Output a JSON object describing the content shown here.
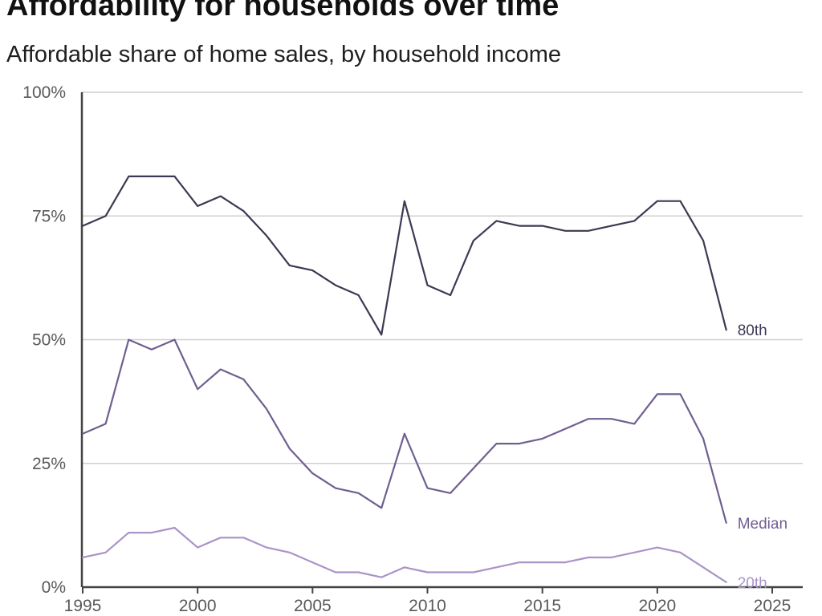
{
  "chart_data": {
    "type": "line",
    "title": "Affordability for households over time",
    "subtitle": "Affordable share of home sales, by household income",
    "xlim": [
      1995,
      2025
    ],
    "ylim": [
      0,
      100
    ],
    "x_ticks": [
      1995,
      2000,
      2005,
      2010,
      2015,
      2020,
      2025
    ],
    "y_ticks": [
      0,
      25,
      50,
      75,
      100
    ],
    "y_tick_labels": [
      "0%",
      "25%",
      "50%",
      "75%",
      "100%"
    ],
    "x_tick_labels": [
      "1995",
      "2000",
      "2005",
      "2010",
      "2015",
      "2020",
      "2025"
    ],
    "grid": "horizontal",
    "x": [
      1995,
      1996,
      1997,
      1998,
      1999,
      2000,
      2001,
      2002,
      2003,
      2004,
      2005,
      2006,
      2007,
      2008,
      2009,
      2010,
      2011,
      2012,
      2013,
      2014,
      2015,
      2016,
      2017,
      2018,
      2019,
      2020,
      2021,
      2022,
      2023
    ],
    "series": [
      {
        "name": "80th",
        "color": "#3f3852",
        "values": [
          73,
          75,
          83,
          83,
          83,
          77,
          79,
          76,
          71,
          65,
          64,
          61,
          59,
          51,
          78,
          61,
          59,
          70,
          74,
          73,
          73,
          72,
          72,
          73,
          74,
          78,
          78,
          70,
          52
        ]
      },
      {
        "name": "Median",
        "color": "#6f5f90",
        "values": [
          31,
          33,
          50,
          48,
          50,
          40,
          44,
          42,
          36,
          28,
          23,
          20,
          19,
          16,
          31,
          20,
          19,
          24,
          29,
          29,
          30,
          32,
          34,
          34,
          33,
          39,
          39,
          30,
          13
        ]
      },
      {
        "name": "20th",
        "color": "#a994c7",
        "values": [
          6,
          7,
          11,
          11,
          12,
          8,
          10,
          10,
          8,
          7,
          5,
          3,
          3,
          2,
          4,
          3,
          3,
          3,
          4,
          5,
          5,
          5,
          6,
          6,
          7,
          8,
          7,
          4,
          1
        ]
      }
    ]
  }
}
